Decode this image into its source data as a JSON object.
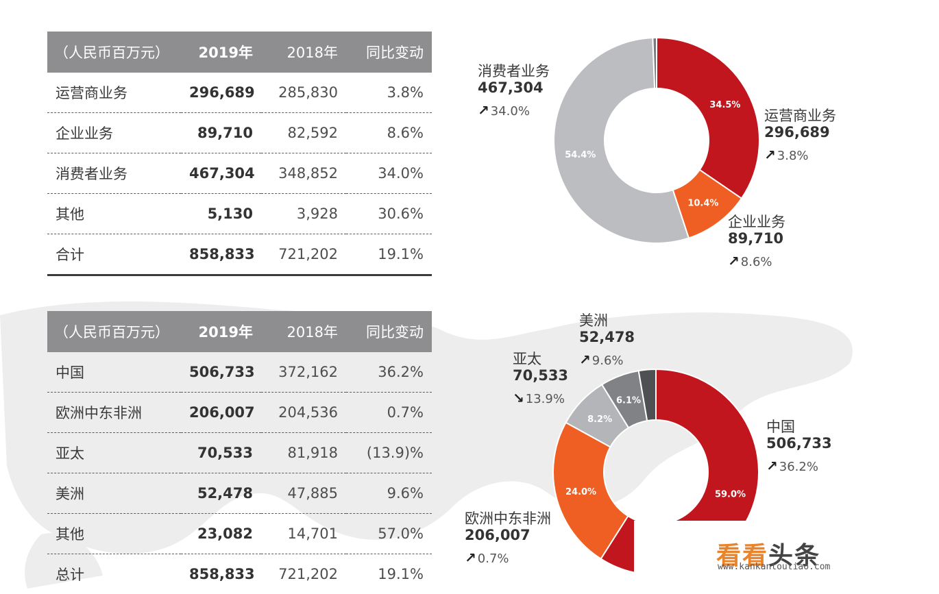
{
  "business_table": {
    "headers": [
      "（人民币百万元）",
      "2019年",
      "2018年",
      "同比变动"
    ],
    "rows": [
      [
        "运营商业务",
        "296,689",
        "285,830",
        "3.8%"
      ],
      [
        "企业业务",
        "89,710",
        "82,592",
        "8.6%"
      ],
      [
        "消费者业务",
        "467,304",
        "348,852",
        "34.0%"
      ],
      [
        "其他",
        "5,130",
        "3,928",
        "30.6%"
      ],
      [
        "合计",
        "858,833",
        "721,202",
        "19.1%"
      ]
    ]
  },
  "region_table": {
    "headers": [
      "（人民币百万元）",
      "2019年",
      "2018年",
      "同比变动"
    ],
    "rows": [
      [
        "中国",
        "506,733",
        "372,162",
        "36.2%"
      ],
      [
        "欧洲中东非洲",
        "206,007",
        "204,536",
        "0.7%"
      ],
      [
        "亚太",
        "70,533",
        "81,918",
        "(13.9)%"
      ],
      [
        "美洲",
        "52,478",
        "47,885",
        "9.6%"
      ],
      [
        "其他",
        "23,082",
        "14,701",
        "57.0%"
      ],
      [
        "总计",
        "858,833",
        "721,202",
        "19.1%"
      ]
    ]
  },
  "chart_data": [
    {
      "type": "pie",
      "donut": true,
      "slices": [
        {
          "label": "运营商业务",
          "value": 34.5,
          "slice_label": "34.5%",
          "color": "#c1161d"
        },
        {
          "label": "企业业务",
          "value": 10.4,
          "slice_label": "10.4%",
          "color": "#ef5f24"
        },
        {
          "label": "消费者业务",
          "value": 54.4,
          "slice_label": "54.4%",
          "color": "#bcbdc0"
        },
        {
          "label": "其他",
          "value": 0.6,
          "slice_label": "",
          "color": "#7a7b7e"
        }
      ],
      "callouts": [
        {
          "name": "消费者业务",
          "value": "467,304",
          "change": "34.0%",
          "direction": "up"
        },
        {
          "name": "运营商业务",
          "value": "296,689",
          "change": "3.8%",
          "direction": "up"
        },
        {
          "name": "企业业务",
          "value": "89,710",
          "change": "8.6%",
          "direction": "up"
        }
      ]
    },
    {
      "type": "pie",
      "donut": true,
      "slices": [
        {
          "label": "中国",
          "value": 59.0,
          "slice_label": "59.0%",
          "color": "#c1161d"
        },
        {
          "label": "欧洲中东非洲",
          "value": 24.0,
          "slice_label": "24.0%",
          "color": "#ef5f24"
        },
        {
          "label": "亚太",
          "value": 8.2,
          "slice_label": "8.2%",
          "color": "#b4b5b8"
        },
        {
          "label": "美洲",
          "value": 6.1,
          "slice_label": "6.1%",
          "color": "#808285"
        },
        {
          "label": "其他",
          "value": 2.7,
          "slice_label": "",
          "color": "#4f5053"
        }
      ],
      "callouts": [
        {
          "name": "美洲",
          "value": "52,478",
          "change": "9.6%",
          "direction": "up"
        },
        {
          "name": "亚太",
          "value": "70,533",
          "change": "13.9%",
          "direction": "down"
        },
        {
          "name": "中国",
          "value": "506,733",
          "change": "36.2%",
          "direction": "up"
        },
        {
          "name": "欧洲中东非洲",
          "value": "206,007",
          "change": "0.7%",
          "direction": "up"
        }
      ]
    }
  ],
  "watermark": {
    "title_a": "看看",
    "title_b": "头条",
    "url": "www.kankantoutiao.com"
  }
}
